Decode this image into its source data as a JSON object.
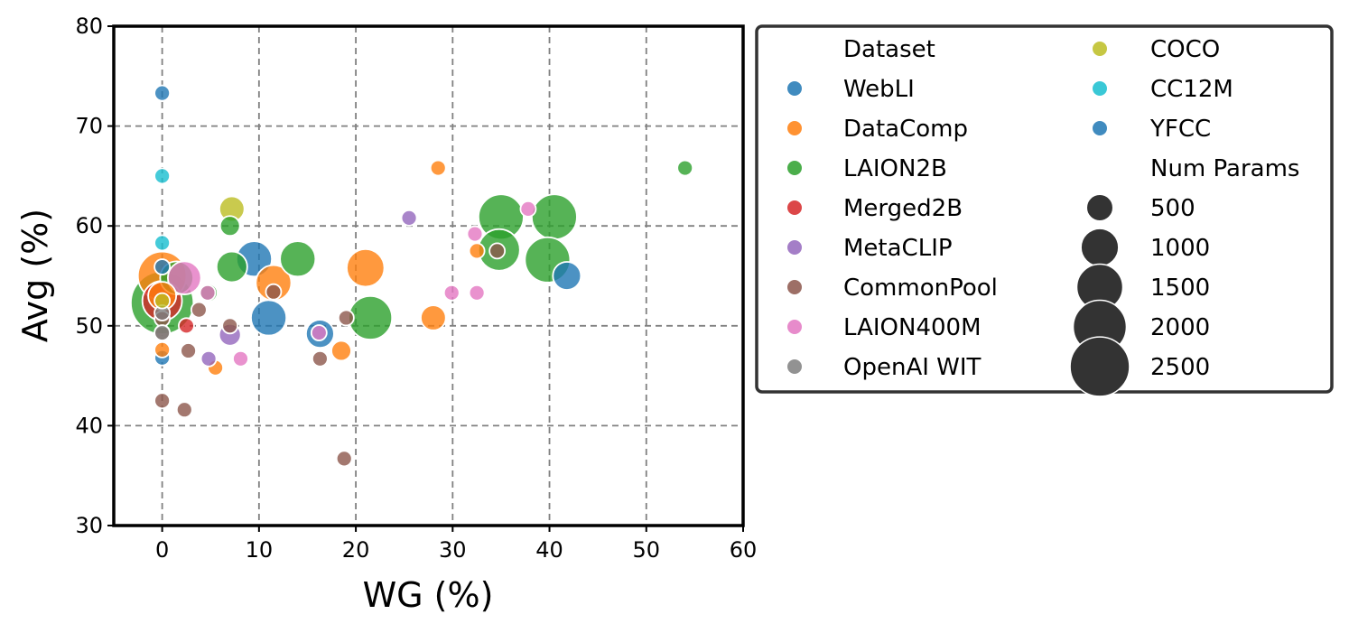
{
  "chart_data": {
    "type": "scatter",
    "title": "",
    "xlabel": "WG (%)",
    "ylabel": "Avg (%)",
    "xlim": [
      -5,
      60
    ],
    "ylim": [
      30,
      80
    ],
    "xticks": [
      0,
      10,
      20,
      30,
      40,
      50,
      60
    ],
    "yticks": [
      30,
      40,
      50,
      60,
      70,
      80
    ],
    "grid": true,
    "legend_placement": "outside-right",
    "size_encoding": "Num Params",
    "legend": {
      "hue_title": "Dataset",
      "size_title": "Num Params",
      "sizes": [
        500,
        1000,
        1500,
        2000,
        2500
      ]
    },
    "series": [
      {
        "name": "WebLI",
        "color": "#1f77b4",
        "points": [
          {
            "x": 0,
            "y": 73.3,
            "size": 150
          },
          {
            "x": 0,
            "y": 55.9,
            "size": 150
          },
          {
            "x": 0,
            "y": 46.8,
            "size": 150
          },
          {
            "x": 9.5,
            "y": 56.7,
            "size": 800
          },
          {
            "x": 11,
            "y": 50.8,
            "size": 800
          },
          {
            "x": 16.3,
            "y": 49.2,
            "size": 500
          },
          {
            "x": 41.8,
            "y": 55,
            "size": 500
          }
        ]
      },
      {
        "name": "DataComp",
        "color": "#ff7f0e",
        "points": [
          {
            "x": 0,
            "y": 55,
            "size": 1500
          },
          {
            "x": 0,
            "y": 53,
            "size": 500
          },
          {
            "x": 0,
            "y": 47.6,
            "size": 150
          },
          {
            "x": 5.5,
            "y": 45.8,
            "size": 150
          },
          {
            "x": 11.5,
            "y": 54.3,
            "size": 800
          },
          {
            "x": 18.5,
            "y": 47.5,
            "size": 250
          },
          {
            "x": 21,
            "y": 55.8,
            "size": 900
          },
          {
            "x": 28,
            "y": 50.8,
            "size": 400
          },
          {
            "x": 28.5,
            "y": 65.8,
            "size": 150
          },
          {
            "x": 32.5,
            "y": 57.5,
            "size": 150
          }
        ]
      },
      {
        "name": "LAION2B",
        "color": "#2ca02c",
        "points": [
          {
            "x": 0,
            "y": 52.3,
            "size": 2500
          },
          {
            "x": 1.5,
            "y": 54.8,
            "size": 700
          },
          {
            "x": 7,
            "y": 60,
            "size": 250
          },
          {
            "x": 7.2,
            "y": 55.9,
            "size": 600
          },
          {
            "x": 4.8,
            "y": 53.3,
            "size": 200
          },
          {
            "x": 14,
            "y": 56.7,
            "size": 800
          },
          {
            "x": 21.5,
            "y": 50.8,
            "size": 1200
          },
          {
            "x": 34.8,
            "y": 57.6,
            "size": 1100
          },
          {
            "x": 35,
            "y": 60.9,
            "size": 1300
          },
          {
            "x": 40.5,
            "y": 60.9,
            "size": 1300
          },
          {
            "x": 39.8,
            "y": 56.6,
            "size": 1300
          },
          {
            "x": 54,
            "y": 65.8,
            "size": 150
          }
        ]
      },
      {
        "name": "Merged2B",
        "color": "#d62728",
        "points": [
          {
            "x": 0,
            "y": 52.5,
            "size": 1000
          },
          {
            "x": 2.5,
            "y": 50,
            "size": 150
          }
        ]
      },
      {
        "name": "MetaCLIP",
        "color": "#9467bd",
        "points": [
          {
            "x": 4.8,
            "y": 46.7,
            "size": 150
          },
          {
            "x": 7,
            "y": 49.1,
            "size": 300
          },
          {
            "x": 25.5,
            "y": 60.8,
            "size": 150
          }
        ]
      },
      {
        "name": "CommonPool",
        "color": "#8c564b",
        "points": [
          {
            "x": 0,
            "y": 42.5,
            "size": 150
          },
          {
            "x": 0,
            "y": 49.2,
            "size": 150
          },
          {
            "x": 0,
            "y": 50.7,
            "size": 150
          },
          {
            "x": 2.3,
            "y": 41.6,
            "size": 150
          },
          {
            "x": 2.7,
            "y": 47.5,
            "size": 150
          },
          {
            "x": 3.8,
            "y": 51.6,
            "size": 150
          },
          {
            "x": 7,
            "y": 50,
            "size": 150
          },
          {
            "x": 11.5,
            "y": 53.4,
            "size": 150
          },
          {
            "x": 16.3,
            "y": 46.7,
            "size": 150
          },
          {
            "x": 19,
            "y": 50.8,
            "size": 150
          },
          {
            "x": 18.8,
            "y": 36.7,
            "size": 150
          },
          {
            "x": 34.6,
            "y": 57.5,
            "size": 150
          }
        ]
      },
      {
        "name": "LAION400M",
        "color": "#e377c2",
        "points": [
          {
            "x": 2.3,
            "y": 54.8,
            "size": 700
          },
          {
            "x": 4.7,
            "y": 53.3,
            "size": 150
          },
          {
            "x": 8.1,
            "y": 46.7,
            "size": 150
          },
          {
            "x": 16.2,
            "y": 49.3,
            "size": 150
          },
          {
            "x": 29.9,
            "y": 53.3,
            "size": 150
          },
          {
            "x": 32.3,
            "y": 59.2,
            "size": 150
          },
          {
            "x": 32.5,
            "y": 53.3,
            "size": 150
          },
          {
            "x": 37.8,
            "y": 61.7,
            "size": 150
          }
        ]
      },
      {
        "name": "OpenAI WIT",
        "color": "#7f7f7f",
        "points": [
          {
            "x": 0,
            "y": 51.3,
            "size": 150
          },
          {
            "x": 0,
            "y": 49.3,
            "size": 150
          }
        ]
      },
      {
        "name": "COCO",
        "color": "#bcbd22",
        "points": [
          {
            "x": 7.2,
            "y": 61.7,
            "size": 400
          },
          {
            "x": 0,
            "y": 52.5,
            "size": 150
          }
        ]
      },
      {
        "name": "CC12M",
        "color": "#17becf",
        "points": [
          {
            "x": 0,
            "y": 65,
            "size": 150
          },
          {
            "x": 0,
            "y": 58.3,
            "size": 150
          }
        ]
      },
      {
        "name": "YFCC",
        "color": "#1f77b4",
        "points": []
      }
    ]
  }
}
